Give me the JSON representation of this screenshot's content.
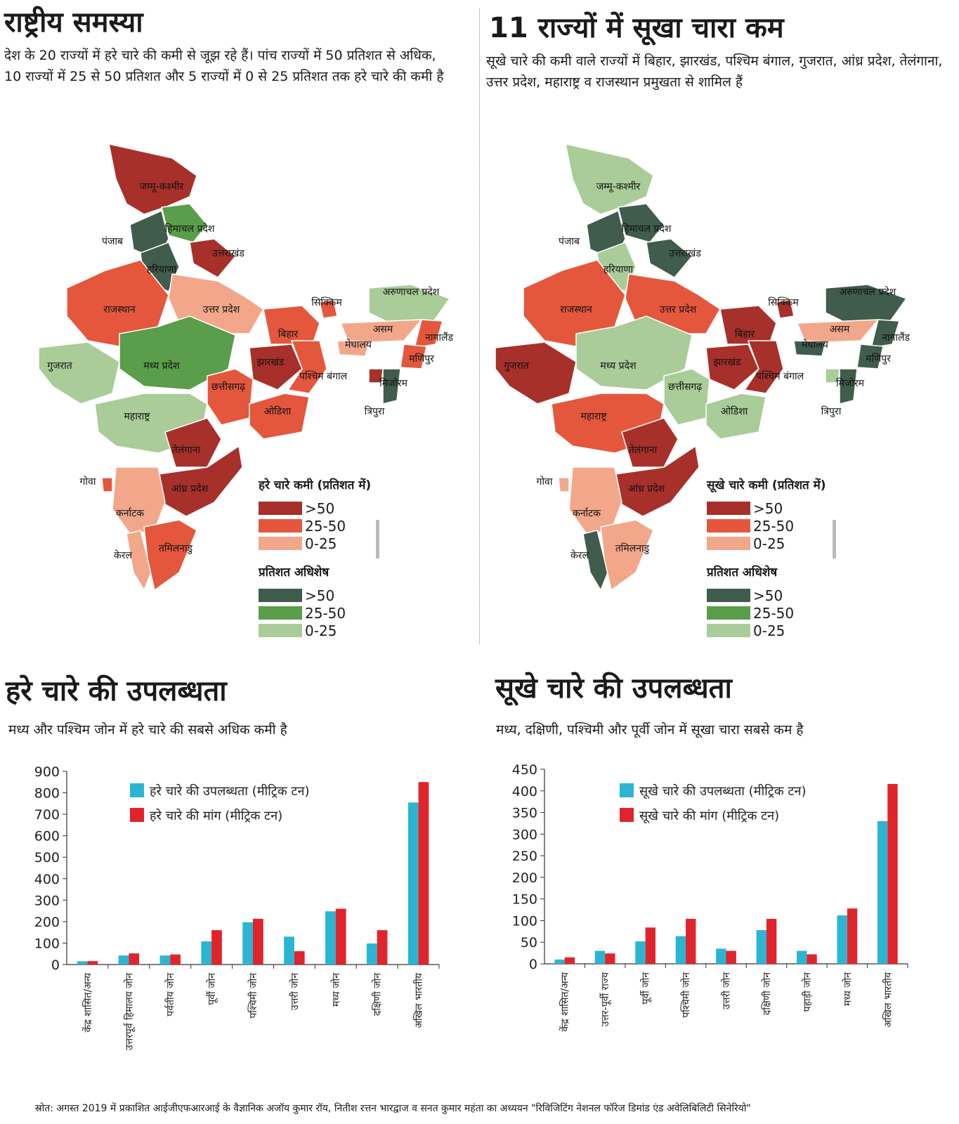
{
  "colors": {
    "deficit_gt50": "#a7302b",
    "deficit_25_50": "#e4573d",
    "deficit_0_25": "#f2a78b",
    "surplus_gt50": "#3f5c4c",
    "surplus_25_50": "#5a9d4a",
    "surplus_0_25": "#a9cc98",
    "availability": "#2cb5d3",
    "demand": "#e0242b"
  },
  "panel_left": {
    "title": "राष्ट्रीय समस्या",
    "subtitle": "देश के 20 राज्यों में हरे चारे की कमी से जूझ रहे हैं। पांच राज्यों में 50 प्रतिशत से अधिक, 10 राज्यों में 25 से 50 प्रतिशत और 5 राज्यों में 0 से 25 प्रतिशत तक हरे चारे की कमी है",
    "legend_deficit_title": "हरे चारे कमी (प्रतिशत में)",
    "legend_surplus_title": "प्रतिशत अधिशेष",
    "legend_labels": [
      ">50",
      "25-50",
      "0-25"
    ],
    "states": {
      "jk": "जम्मू-कश्मीर",
      "hp": "हिमाचल प्रदेश",
      "pb": "पंजाब",
      "uk": "उत्तराखंड",
      "hr": "हरियाणा",
      "rj": "राजस्थान",
      "up": "उत्तर प्रदेश",
      "sk": "सिक्किम",
      "ar": "अरुणाचल प्रदेश",
      "br": "बिहार",
      "as": "असम",
      "nl": "नागालैंड",
      "ml": "मेघालय",
      "mn": "मणिपुर",
      "gj": "गुजरात",
      "mp": "मध्य प्रदेश",
      "jh": "झारखंड",
      "wb": "पश्चिम बंगाल",
      "mz": "मिजोरम",
      "cg": "छत्तीसगढ़",
      "tr": "त्रिपुरा",
      "od": "ओडिशा",
      "mh": "महाराष्ट्र",
      "tg": "तेलंगाना",
      "ga": "गोवा",
      "ap": "आंध्र प्रदेश",
      "ka": "कर्नाटक",
      "kl": "केरल",
      "tn": "तमिलनाडु"
    }
  },
  "panel_right": {
    "title": "11 राज्यों में सूखा चारा कम",
    "subtitle": "सूखे चारे की कमी वाले राज्यों में बिहार, झारखंड, पश्चिम बंगाल, गुजरात, आंध्र प्रदेश, तेलंगाना, उत्तर प्रदेश, महाराष्ट्र व राजस्थान प्रमुखता से शामिल हैं",
    "legend_deficit_title": "सूखे चारे कमी (प्रतिशत में)",
    "legend_surplus_title": "प्रतिशत अधिशेष",
    "legend_labels": [
      ">50",
      "25-50",
      "0-25"
    ],
    "states": {
      "jk": "जम्मू-कश्मीर",
      "hp": "हिमाचल प्रदेश",
      "pb": "पंजाब",
      "uk": "उत्तराखंड",
      "hr": "हरियाणा",
      "rj": "राजस्थान",
      "up": "उत्तर प्रदेश",
      "sk": "सिक्किम",
      "ar": "अरुणाचल प्रदेश",
      "br": "बिहार",
      "as": "असम",
      "nl": "नागालैंड",
      "ml": "मेघालय",
      "mn": "मणिपुर",
      "gj": "गुजरात",
      "mp": "मध्य प्रदेश",
      "jh": "झारखंड",
      "wb": "पश्चिम बंगाल",
      "mz": "मिजोरम",
      "cg": "छत्तीसगढ़",
      "tr": "त्रिपुरा",
      "od": "ओडिशा",
      "mh": "महाराष्ट्र",
      "tg": "तेलंगाना",
      "ga": "गोवा",
      "ap": "आंध्र प्रदेश",
      "ka": "कर्नाटक",
      "kl": "केरल",
      "tn": "तमिलनाडु"
    }
  },
  "chart_left_header": {
    "title": "हरे चारे की उपलब्धता",
    "subtitle": "मध्य और पश्चिम जोन में हरे चारे की सबसे अधिक कमी है"
  },
  "chart_right_header": {
    "title": "सूखे चारे की उपलब्धता",
    "subtitle": "मध्य, दक्षिणी, पश्चिमी और पूर्वी जोन में सूखा चारा सबसे कम है"
  },
  "chart_data": [
    {
      "type": "bar",
      "categories": [
        "केंद्र शासित/अन्य",
        "उत्तरपूर्व हिमालय जोन",
        "पर्वतीय जोन",
        "पूर्वी जोन",
        "पश्चिमी जोन",
        "उत्तरी जोन",
        "मध्य जोन",
        "दक्षिणी जोन",
        "अखिल भारतीय"
      ],
      "series": [
        {
          "name": "हरे चारे की उपलब्धता (मीट्रिक टन)",
          "values": [
            15,
            42,
            42,
            108,
            197,
            130,
            248,
            98,
            755
          ]
        },
        {
          "name": "हरे चारे की मांग (मीट्रिक टन)",
          "values": [
            16,
            52,
            47,
            160,
            213,
            62,
            260,
            160,
            850
          ]
        }
      ],
      "ylim": [
        0,
        900
      ],
      "yticks": [
        0,
        100,
        200,
        300,
        400,
        500,
        600,
        700,
        800,
        900
      ],
      "legend_position": "top-left",
      "grid": false
    },
    {
      "type": "bar",
      "categories": [
        "केंद्र शासित/अन्य",
        "उत्तर-पूर्वी राज्य",
        "पूर्वी जोन",
        "पश्चिमी जोन",
        "उत्तरी जोन",
        "दक्षिणी जोन",
        "पहाड़ी जोन",
        "मध्य जोन",
        "अखिल भारतीय"
      ],
      "series": [
        {
          "name": "सूखे चारे की उपलब्धता (मीट्रिक टन)",
          "values": [
            10,
            30,
            52,
            64,
            35,
            78,
            30,
            112,
            330
          ]
        },
        {
          "name": "सूखे चारे की मांग (मीट्रिक टन)",
          "values": [
            15,
            24,
            84,
            104,
            30,
            104,
            22,
            128,
            416
          ]
        }
      ],
      "ylim": [
        0,
        450
      ],
      "yticks": [
        0,
        50,
        100,
        150,
        200,
        250,
        300,
        350,
        400,
        450
      ],
      "legend_position": "top-left",
      "grid": false
    }
  ],
  "source": "स्रोत: अगस्त 2019 में प्रकाशित आईजीएफआरआई के वैज्ञानिक अजॉय कुमार रॉय, नितीश रत्तन भारद्वाज व सनत कुमार महंता का अध्ययन \"रिविजिटिंग नेशनल फॉरेज डिमांड एंड अवेलिबिलिटी सिनेरियो\""
}
